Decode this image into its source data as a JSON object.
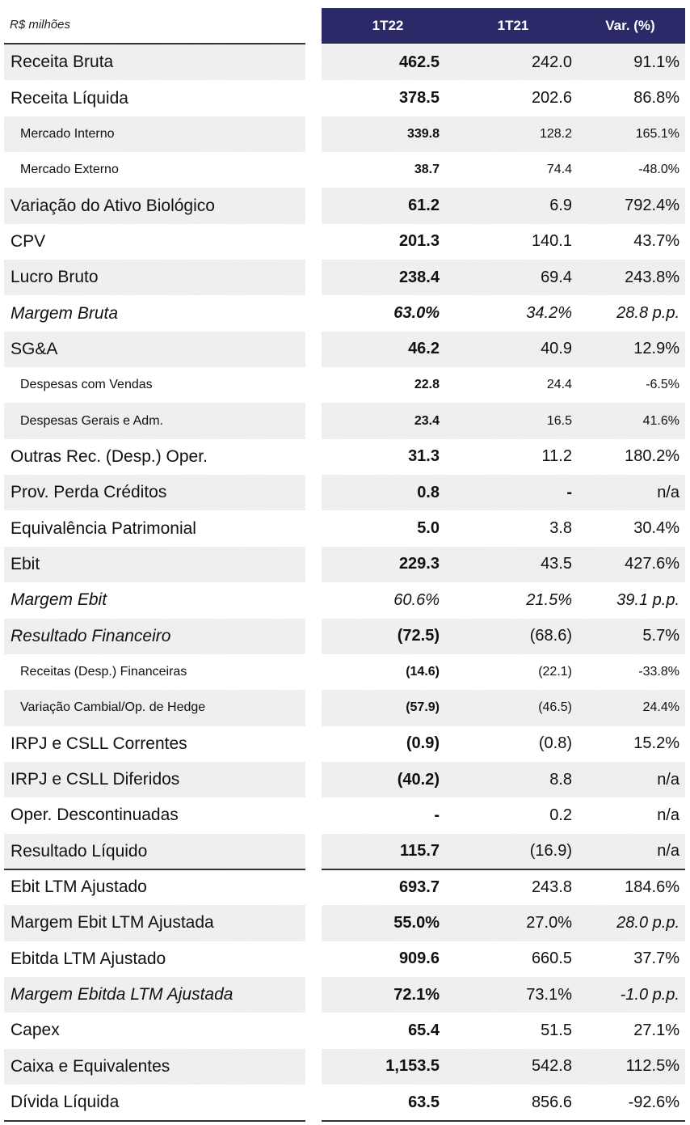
{
  "header": {
    "unit_label": "R$ milhões",
    "col1": "1T22",
    "col2": "1T21",
    "col3": "Var. (%)"
  },
  "chart_data": {
    "type": "table",
    "columns": [
      "R$ milhões",
      "1T22",
      "1T21",
      "Var. (%)"
    ],
    "rows": [
      {
        "label": "Receita Bruta",
        "v1": "462.5",
        "v2": "242.0",
        "v3": "91.1%",
        "style": "main",
        "shade": true
      },
      {
        "label": "Receita Líquida",
        "v1": "378.5",
        "v2": "202.6",
        "v3": "86.8%",
        "style": "main",
        "shade": false
      },
      {
        "label": "Mercado Interno",
        "v1": "339.8",
        "v2": "128.2",
        "v3": "165.1%",
        "style": "sub",
        "shade": true
      },
      {
        "label": "Mercado Externo",
        "v1": "38.7",
        "v2": "74.4",
        "v3": "-48.0%",
        "style": "sub",
        "shade": false
      },
      {
        "label": "Variação do Ativo Biológico",
        "v1": "61.2",
        "v2": "6.9",
        "v3": "792.4%",
        "style": "main",
        "shade": true
      },
      {
        "label": "CPV",
        "v1": "201.3",
        "v2": "140.1",
        "v3": "43.7%",
        "style": "main",
        "shade": false
      },
      {
        "label": "Lucro Bruto",
        "v1": "238.4",
        "v2": "69.4",
        "v3": "243.8%",
        "style": "main",
        "shade": true
      },
      {
        "label": "Margem Bruta",
        "v1": "63.0%",
        "v2": "34.2%",
        "v3": "28.8 p.p.",
        "style": "italic",
        "shade": false
      },
      {
        "label": "SG&A",
        "v1": "46.2",
        "v2": "40.9",
        "v3": "12.9%",
        "style": "main",
        "shade": true
      },
      {
        "label": "Despesas com Vendas",
        "v1": "22.8",
        "v2": "24.4",
        "v3": "-6.5%",
        "style": "sub",
        "shade": false
      },
      {
        "label": "Despesas Gerais e Adm.",
        "v1": "23.4",
        "v2": "16.5",
        "v3": "41.6%",
        "style": "sub",
        "shade": true
      },
      {
        "label": "Outras Rec. (Desp.) Oper.",
        "v1": "31.3",
        "v2": "11.2",
        "v3": "180.2%",
        "style": "main",
        "shade": false
      },
      {
        "label": "Prov. Perda Créditos",
        "v1": "0.8",
        "v2": "-",
        "v3": "n/a",
        "style": "main",
        "shade": true
      },
      {
        "label": "Equivalência Patrimonial",
        "v1": "5.0",
        "v2": "3.8",
        "v3": "30.4%",
        "style": "main",
        "shade": false
      },
      {
        "label": "Ebit",
        "v1": "229.3",
        "v2": "43.5",
        "v3": "427.6%",
        "style": "main",
        "shade": true
      },
      {
        "label": "Margem Ebit",
        "v1": "60.6%",
        "v2": "21.5%",
        "v3": "39.1 p.p.",
        "style": "italic",
        "shade": false,
        "v1_plain": true
      },
      {
        "label": "Resultado Financeiro",
        "v1": "(72.5)",
        "v2": "(68.6)",
        "v3": "5.7%",
        "style": "label-italic",
        "shade": true
      },
      {
        "label": "Receitas (Desp.) Financeiras",
        "v1": "(14.6)",
        "v2": "(22.1)",
        "v3": "-33.8%",
        "style": "sub",
        "shade": false
      },
      {
        "label": "Variação Cambial/Op. de Hedge",
        "v1": "(57.9)",
        "v2": "(46.5)",
        "v3": "24.4%",
        "style": "sub",
        "shade": true
      },
      {
        "label": "IRPJ e CSLL Correntes",
        "v1": "(0.9)",
        "v2": "(0.8)",
        "v3": "15.2%",
        "style": "main",
        "shade": false
      },
      {
        "label": "IRPJ e CSLL Diferidos",
        "v1": "(40.2)",
        "v2": "8.8",
        "v3": "n/a",
        "style": "main",
        "shade": true
      },
      {
        "label": "Oper. Descontinuadas",
        "v1": "-",
        "v2": "0.2",
        "v3": "n/a",
        "style": "main",
        "shade": false
      },
      {
        "label": "Resultado Líquido",
        "v1": "115.7",
        "v2": "(16.9)",
        "v3": "n/a",
        "style": "main",
        "shade": true,
        "rule_after": true
      },
      {
        "label": "Ebit LTM Ajustado",
        "v1": "693.7",
        "v2": "243.8",
        "v3": "184.6%",
        "style": "main",
        "shade": false
      },
      {
        "label": "Margem Ebit LTM Ajustada",
        "v1": "55.0%",
        "v2": "27.0%",
        "v3": "28.0 p.p.",
        "style": "main",
        "shade": true,
        "v3_italic": true
      },
      {
        "label": "Ebitda LTM Ajustado",
        "v1": "909.6",
        "v2": "660.5",
        "v3": "37.7%",
        "style": "main",
        "shade": false
      },
      {
        "label": "Margem Ebitda LTM Ajustada",
        "v1": "72.1%",
        "v2": "73.1%",
        "v3": "-1.0 p.p.",
        "style": "label-italic",
        "shade": true,
        "v3_italic": true
      },
      {
        "label": "Capex",
        "v1": "65.4",
        "v2": "51.5",
        "v3": "27.1%",
        "style": "main",
        "shade": false
      },
      {
        "label": "Caixa e Equivalentes",
        "v1": "1,153.5",
        "v2": "542.8",
        "v3": "112.5%",
        "style": "main",
        "shade": true
      },
      {
        "label": "Dívida Líquida",
        "v1": "63.5",
        "v2": "856.6",
        "v3": "-92.6%",
        "style": "main",
        "shade": false,
        "rule_after": true
      }
    ]
  }
}
